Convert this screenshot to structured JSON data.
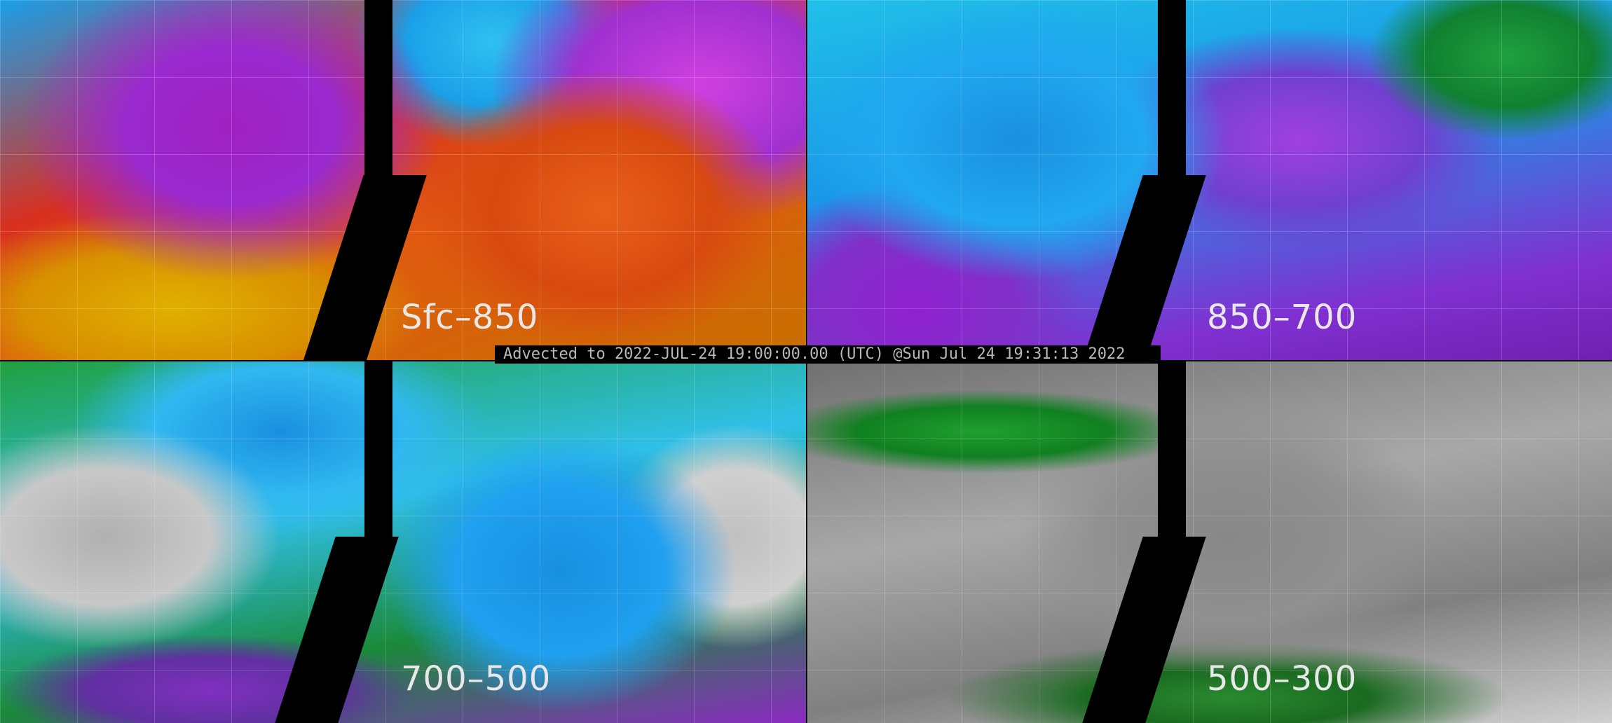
{
  "timestamp_bar": "Advected to 2022-JUL-24 19:00:00.00 (UTC) @Sun Jul 24 19:31:13 2022",
  "panels": [
    {
      "label": "Sfc–850"
    },
    {
      "label": "850–700"
    },
    {
      "label": "700–500"
    },
    {
      "label": "500–300"
    }
  ],
  "colors": {
    "background": "#000000",
    "label_text": "#e8e8e8",
    "timestamp_text": "#b8b8b8"
  }
}
